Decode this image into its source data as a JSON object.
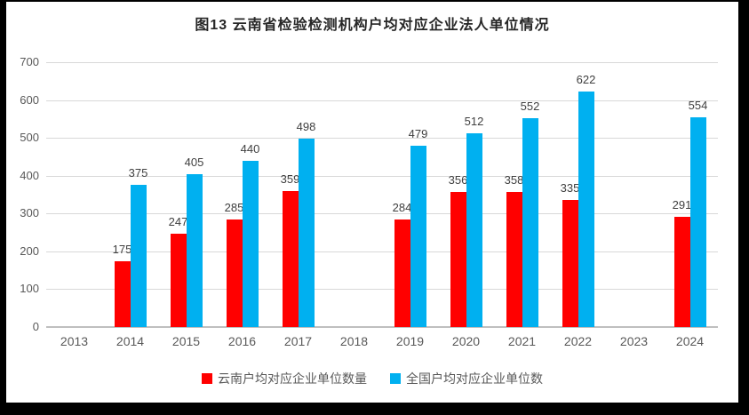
{
  "frame": {
    "border_color": "#000000",
    "background": "#ffffff"
  },
  "chart_data": {
    "type": "bar",
    "title": "图13  云南省检验检测机构户均对应企业法人单位情况",
    "categories": [
      "2013",
      "2014",
      "2015",
      "2016",
      "2017",
      "2018",
      "2019",
      "2020",
      "2021",
      "2022",
      "2023",
      "2024"
    ],
    "series": [
      {
        "name": "云南户均对应企业单位数量",
        "color": "#FF0000",
        "values": [
          null,
          175,
          247,
          285,
          359,
          null,
          284,
          356,
          358,
          335,
          null,
          291
        ]
      },
      {
        "name": "全国户均对应企业单位数",
        "color": "#00B0F0",
        "values": [
          null,
          375,
          405,
          440,
          498,
          null,
          479,
          512,
          552,
          622,
          null,
          554
        ]
      }
    ],
    "ylim": [
      0,
      700
    ],
    "yticks": [
      0,
      100,
      200,
      300,
      400,
      500,
      600,
      700
    ],
    "grid": true,
    "data_labels": true,
    "legend_position": "bottom",
    "xlabel": "",
    "ylabel": ""
  },
  "style_colors": {
    "gridline": "#d9d9d9",
    "axis_line": "#bfbfbf",
    "tick_label": "#595959",
    "data_label": "#404040",
    "title": "#262626"
  }
}
